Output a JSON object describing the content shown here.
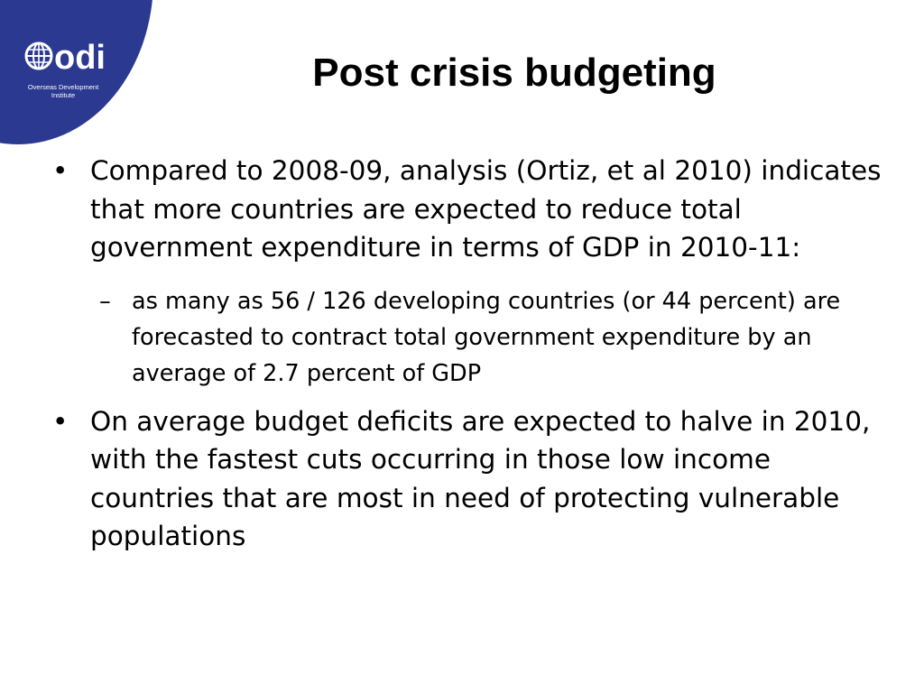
{
  "logo": {
    "wordmark": "odi",
    "caption_line1": "Overseas Development",
    "caption_line2": "Institute",
    "icon": "globe-icon",
    "brand_color": "#2b3990"
  },
  "slide": {
    "title": "Post crisis budgeting",
    "bullet_marker": "•",
    "sub_marker": "–",
    "bullets": [
      {
        "text": "Compared to 2008-09, analysis (Ortiz, et al 2010) indicates that more countries are expected to reduce total government expenditure in terms of GDP in 2010-11:",
        "sub": "as many as 56 / 126 developing countries (or 44 percent) are forecasted to contract total government expenditure by an average of 2.7 percent of GDP"
      },
      {
        "text": "On average budget deficits are expected to halve in 2010, with the fastest cuts occurring in those low income countries that are most in need of protecting vulnerable populations"
      }
    ]
  }
}
